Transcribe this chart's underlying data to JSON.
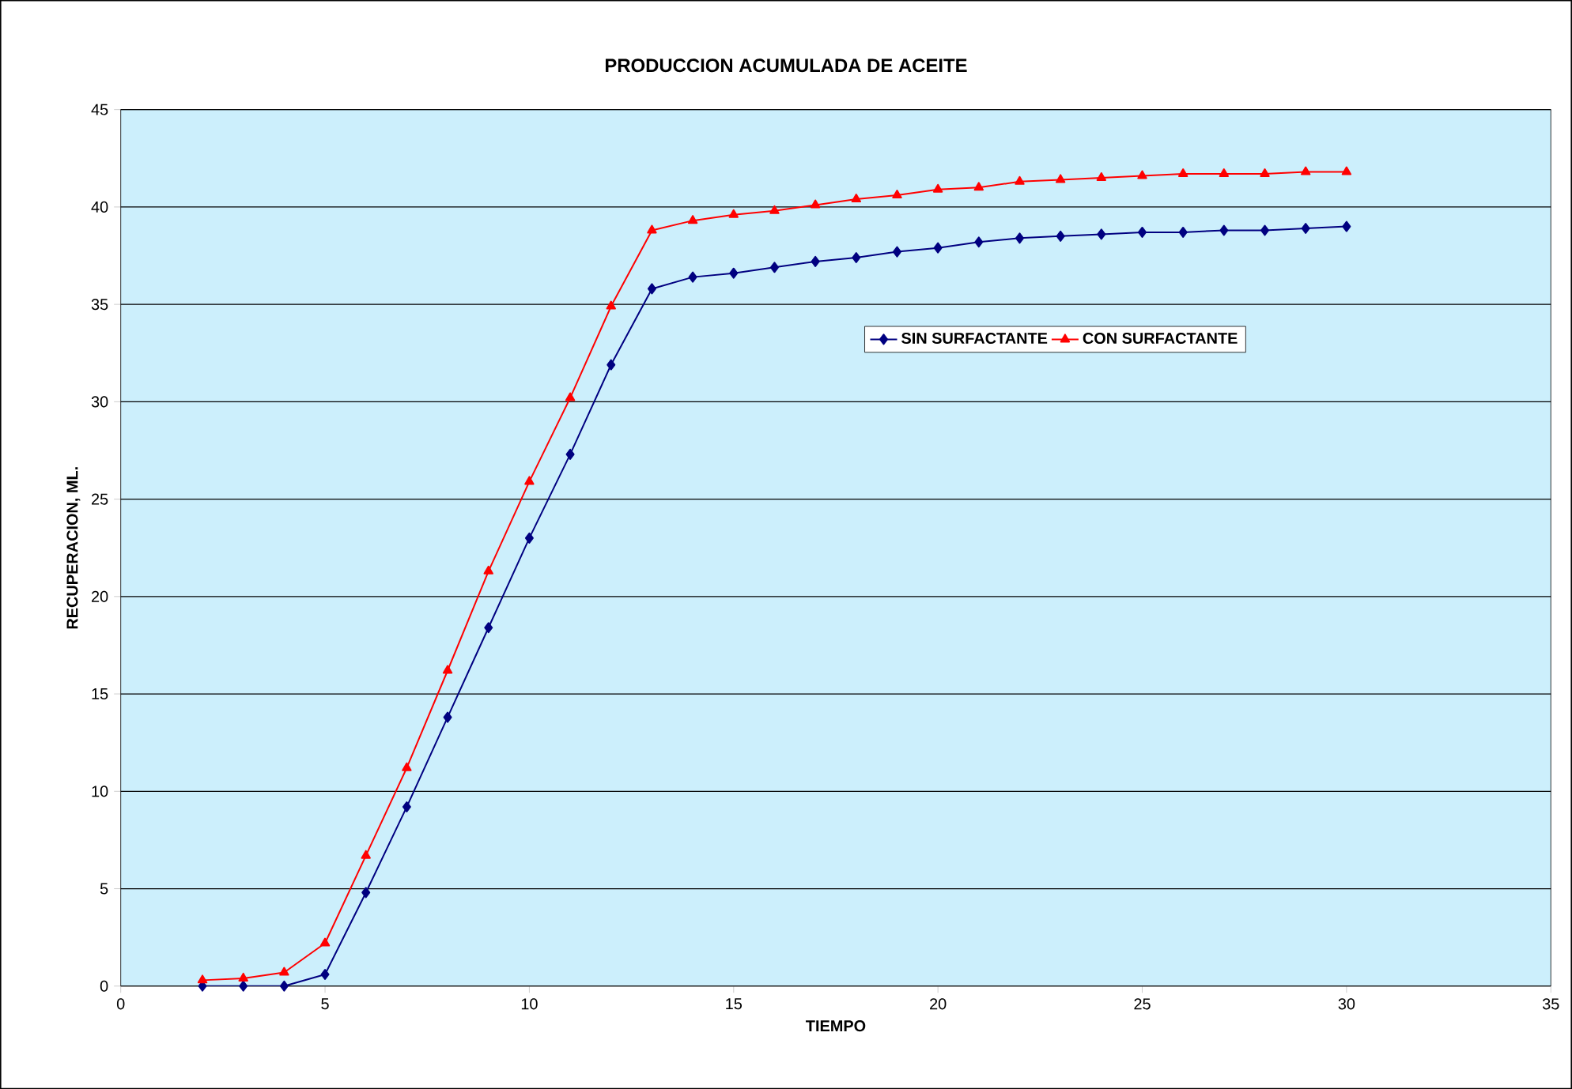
{
  "chart_data": {
    "type": "line",
    "title": "PRODUCCION ACUMULADA DE ACEITE",
    "xlabel": "TIEMPO",
    "ylabel": "RECUPERACION, ML.",
    "x": [
      2,
      3,
      4,
      5,
      6,
      7,
      8,
      9,
      10,
      11,
      12,
      13,
      14,
      15,
      16,
      17,
      18,
      19,
      20,
      21,
      22,
      23,
      24,
      25,
      26,
      27,
      28,
      29,
      30
    ],
    "series": [
      {
        "name": "SIN SURFACTANTE",
        "color": "#000080",
        "marker": "diamond",
        "values": [
          0,
          0,
          0,
          0.6,
          4.8,
          9.2,
          13.8,
          18.4,
          23.0,
          27.3,
          31.9,
          35.8,
          36.4,
          36.6,
          36.9,
          37.2,
          37.4,
          37.7,
          37.9,
          38.2,
          38.4,
          38.5,
          38.6,
          38.7,
          38.7,
          38.8,
          38.8,
          38.9,
          39.0
        ]
      },
      {
        "name": "CON SURFACTANTE",
        "color": "#ff0000",
        "marker": "triangle",
        "values": [
          0.3,
          0.4,
          0.7,
          2.2,
          6.7,
          11.2,
          16.2,
          21.3,
          25.9,
          30.2,
          34.9,
          38.8,
          39.3,
          39.6,
          39.8,
          40.1,
          40.4,
          40.6,
          40.9,
          41.0,
          41.3,
          41.4,
          41.5,
          41.6,
          41.7,
          41.7,
          41.7,
          41.8,
          41.8
        ]
      }
    ],
    "xlim": [
      0,
      35
    ],
    "xticks": [
      0,
      5,
      10,
      15,
      20,
      25,
      30,
      35
    ],
    "ylim": [
      0,
      45
    ],
    "yticks": [
      0,
      5,
      10,
      15,
      20,
      25,
      30,
      35,
      40,
      45
    ],
    "grid": "y",
    "legend": "right",
    "line_style": "solid"
  }
}
